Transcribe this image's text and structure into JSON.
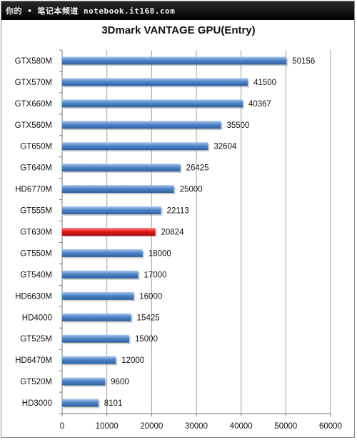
{
  "watermark": "你的 • 笔记本频道 notebook.it168.com",
  "chart_data": {
    "type": "bar",
    "orientation": "horizontal",
    "title": "3Dmark VANTAGE GPU(Entry)",
    "categories": [
      "GTX580M",
      "GTX570M",
      "GTX660M",
      "GTX560M",
      "GT650M",
      "GT640M",
      "HD6770M",
      "GT555M",
      "GT630M",
      "GT550M",
      "GT540M",
      "HD6630M",
      "HD4000",
      "GT525M",
      "HD6470M",
      "GT520M",
      "HD3000"
    ],
    "values": [
      50156,
      41500,
      40367,
      35500,
      32604,
      26425,
      25000,
      22113,
      20824,
      18000,
      17000,
      16000,
      15425,
      15000,
      12000,
      9600,
      8101
    ],
    "value_labels": [
      "50156",
      "41500",
      "40367",
      "35500",
      "32604",
      "26425",
      "25000",
      "22113",
      "20824",
      "18000",
      "17000",
      "16000",
      "15425",
      "15000",
      "12000",
      "9600",
      "8101"
    ],
    "highlight": "GT630M",
    "xlim": [
      0,
      60000
    ],
    "xticks": [
      "0",
      "10000",
      "20000",
      "30000",
      "40000",
      "50000",
      "60000"
    ],
    "grid": true,
    "colors": {
      "bar": "#4a7ebb",
      "bar_highlight": "#e21a1a",
      "grid": "#a0a0a0"
    }
  }
}
